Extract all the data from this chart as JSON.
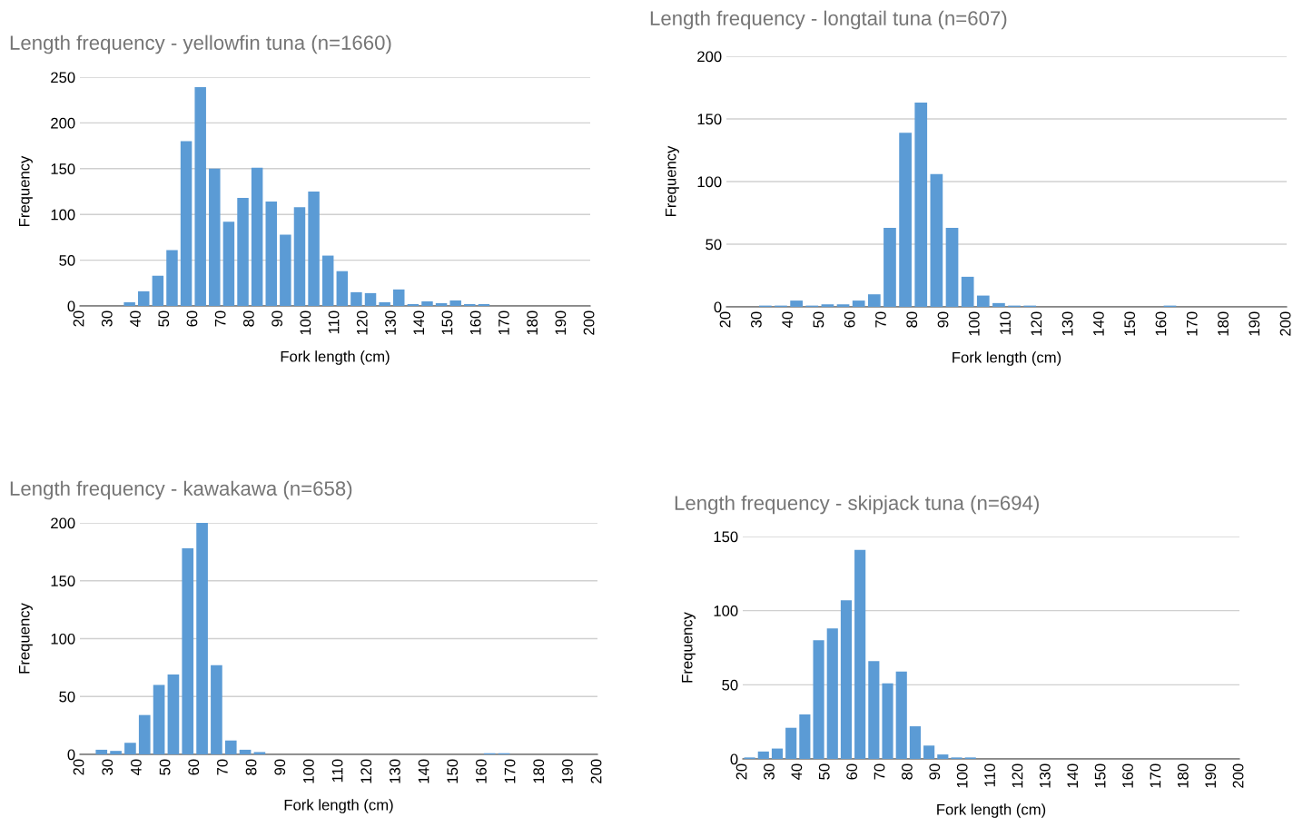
{
  "chart_data": [
    {
      "type": "histogram",
      "title": "Length frequency - yellowfin tuna (n=1660)",
      "xlabel": "Fork length (cm)",
      "ylabel": "Frequency",
      "color": "#5b9bd5",
      "grid": "y",
      "bins": [
        20,
        25,
        30,
        35,
        40,
        45,
        50,
        55,
        60,
        65,
        70,
        75,
        80,
        85,
        90,
        95,
        100,
        105,
        110,
        115,
        120,
        125,
        130,
        135,
        140,
        145,
        150,
        155,
        160,
        165,
        170,
        175,
        180,
        185,
        190,
        195,
        200
      ],
      "values": [
        0,
        0,
        0,
        4,
        16,
        33,
        61,
        180,
        239,
        150,
        92,
        118,
        151,
        114,
        78,
        108,
        125,
        55,
        38,
        15,
        14,
        4,
        18,
        2,
        5,
        3,
        6,
        2,
        2,
        0,
        0,
        0,
        0,
        0,
        0,
        0
      ],
      "xlim": [
        20,
        200
      ],
      "xticks": [
        20,
        30,
        40,
        50,
        60,
        70,
        80,
        90,
        100,
        110,
        120,
        130,
        140,
        150,
        160,
        170,
        180,
        190,
        200
      ],
      "ylim": [
        0,
        250
      ],
      "yticks": [
        0,
        50,
        100,
        150,
        200,
        250
      ]
    },
    {
      "type": "histogram",
      "title": "Length frequency - longtail tuna (n=607)",
      "xlabel": "Fork length (cm)",
      "ylabel": "Frequency",
      "color": "#5b9bd5",
      "grid": "y",
      "bins": [
        20,
        25,
        30,
        35,
        40,
        45,
        50,
        55,
        60,
        65,
        70,
        75,
        80,
        85,
        90,
        95,
        100,
        105,
        110,
        115,
        120,
        125,
        130,
        135,
        140,
        145,
        150,
        155,
        160,
        165,
        170,
        175,
        180,
        185,
        190,
        195,
        200
      ],
      "values": [
        0,
        0,
        1,
        1,
        5,
        1,
        2,
        2,
        5,
        10,
        63,
        139,
        163,
        106,
        63,
        24,
        9,
        3,
        1,
        1,
        0,
        0,
        0,
        0,
        0,
        0,
        0,
        0,
        1,
        0,
        0,
        0,
        0,
        0,
        0,
        0
      ],
      "xlim": [
        20,
        200
      ],
      "xticks": [
        20,
        30,
        40,
        50,
        60,
        70,
        80,
        90,
        100,
        110,
        120,
        130,
        140,
        150,
        160,
        170,
        180,
        190,
        200
      ],
      "ylim": [
        0,
        200
      ],
      "yticks": [
        0,
        50,
        100,
        150,
        200
      ]
    },
    {
      "type": "histogram",
      "title": "Length frequency - kawakawa (n=658)",
      "xlabel": "Fork length (cm)",
      "ylabel": "Frequency",
      "color": "#5b9bd5",
      "grid": "y",
      "bins": [
        20,
        25,
        30,
        35,
        40,
        45,
        50,
        55,
        60,
        65,
        70,
        75,
        80,
        85,
        90,
        95,
        100,
        105,
        110,
        115,
        120,
        125,
        130,
        135,
        140,
        145,
        150,
        155,
        160,
        165,
        170,
        175,
        180,
        185,
        190,
        195,
        200
      ],
      "values": [
        0,
        4,
        3,
        10,
        34,
        60,
        69,
        178,
        200,
        77,
        12,
        4,
        2,
        0,
        0,
        0,
        0,
        0,
        0,
        0,
        0,
        0,
        0,
        0,
        0,
        0,
        0,
        0,
        1,
        1,
        0,
        0,
        0,
        0,
        0,
        0
      ],
      "xlim": [
        20,
        200
      ],
      "xticks": [
        20,
        30,
        40,
        50,
        60,
        70,
        80,
        90,
        100,
        110,
        120,
        130,
        140,
        150,
        160,
        170,
        180,
        190,
        200
      ],
      "ylim": [
        0,
        200
      ],
      "yticks": [
        0,
        50,
        100,
        150,
        200
      ]
    },
    {
      "type": "histogram",
      "title": "Length frequency - skipjack tuna (n=694)",
      "xlabel": "Fork length (cm)",
      "ylabel": "Frequency",
      "color": "#5b9bd5",
      "grid": "y",
      "bins": [
        20,
        25,
        30,
        35,
        40,
        45,
        50,
        55,
        60,
        65,
        70,
        75,
        80,
        85,
        90,
        95,
        100,
        105,
        110,
        115,
        120,
        125,
        130,
        135,
        140,
        145,
        150,
        155,
        160,
        165,
        170,
        175,
        180,
        185,
        190,
        195,
        200
      ],
      "values": [
        1,
        5,
        7,
        21,
        30,
        80,
        88,
        107,
        141,
        66,
        51,
        59,
        22,
        9,
        3,
        1,
        1,
        0,
        0,
        0,
        0,
        0,
        0,
        0,
        0,
        0,
        0,
        0,
        0,
        0,
        0,
        0,
        0,
        0,
        0,
        0
      ],
      "xlim": [
        20,
        200
      ],
      "xticks": [
        20,
        30,
        40,
        50,
        60,
        70,
        80,
        90,
        100,
        110,
        120,
        130,
        140,
        150,
        160,
        170,
        180,
        190,
        200
      ],
      "ylim": [
        0,
        150
      ],
      "yticks": [
        0,
        50,
        100,
        150
      ]
    }
  ]
}
